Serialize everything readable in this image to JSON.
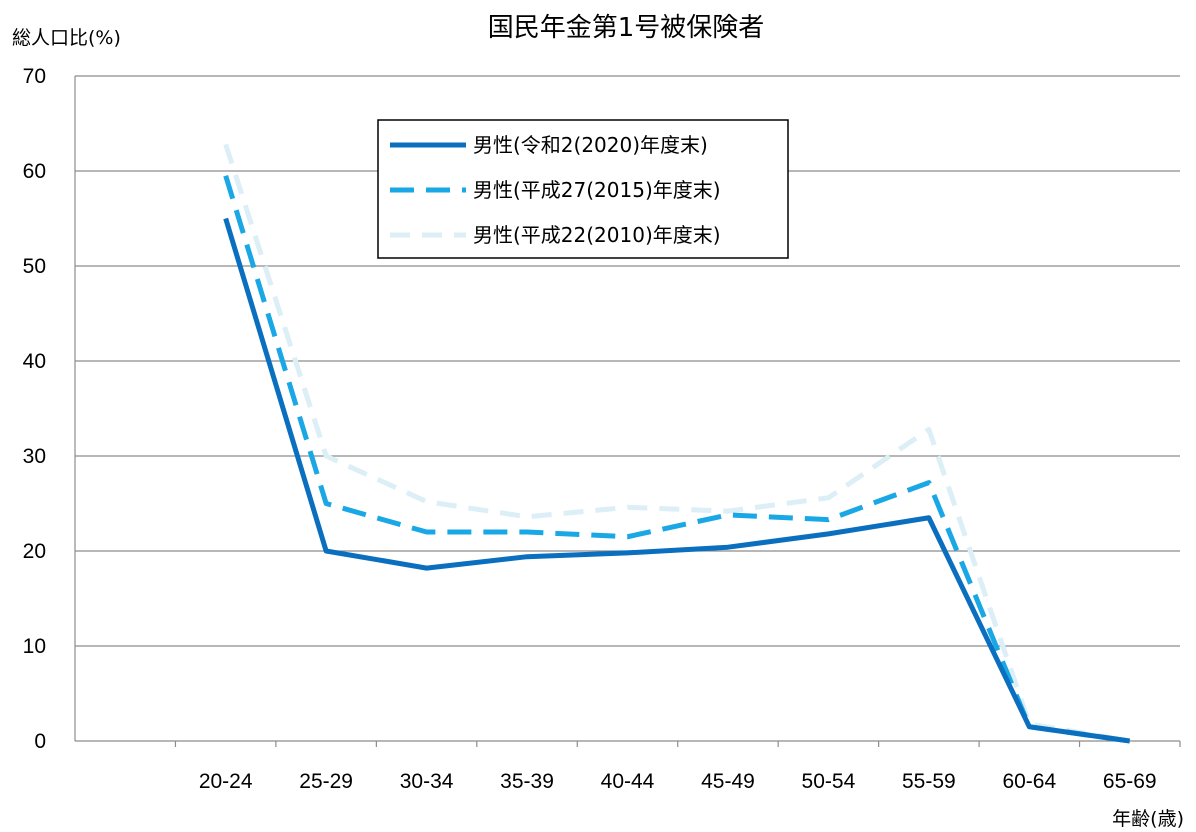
{
  "chart_data": {
    "type": "line",
    "title": "国民年金第1号被保険者",
    "ylabel": "総人口比(%)",
    "xlabel": "年齢(歳)",
    "ylim": [
      0,
      70
    ],
    "yticks": [
      0,
      10,
      20,
      30,
      40,
      50,
      60,
      70
    ],
    "grid": true,
    "legend_position": "top-center",
    "categories": [
      "20-24",
      "25-29",
      "30-34",
      "35-39",
      "40-44",
      "45-49",
      "50-54",
      "55-59",
      "60-64",
      "65-69"
    ],
    "series": [
      {
        "name": "男性(令和2(2020)年度末)",
        "color": "#0B6FBF",
        "line_style": "solid",
        "values": [
          55.0,
          20.0,
          18.2,
          19.4,
          19.8,
          20.4,
          21.8,
          23.5,
          1.5,
          0.0
        ]
      },
      {
        "name": "男性(平成27(2015)年度末)",
        "color": "#1AA7E6",
        "line_style": "dashed",
        "values": [
          59.5,
          25.0,
          22.0,
          22.0,
          21.5,
          23.8,
          23.3,
          27.2,
          1.5,
          0.0
        ]
      },
      {
        "name": "男性(平成22(2010)年度末)",
        "color": "#DCEEF6",
        "line_style": "dashed",
        "values": [
          62.8,
          30.0,
          25.2,
          23.6,
          24.6,
          24.2,
          25.6,
          32.8,
          1.8,
          0.0
        ]
      }
    ]
  }
}
